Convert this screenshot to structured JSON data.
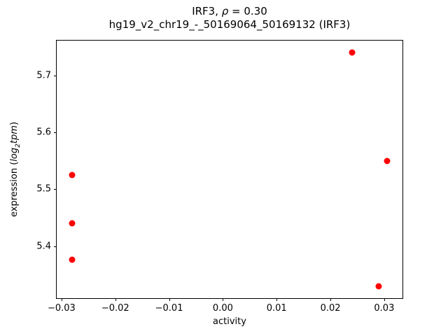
{
  "title": {
    "line1_prefix": "IRF3, ",
    "line1_rho": "ρ",
    "line1_suffix": " = 0.30",
    "line2": "hg19_v2_chr19_-_50169064_50169132 (IRF3)"
  },
  "axes": {
    "xlabel": "activity",
    "ylabel_prefix": "expression (",
    "ylabel_log": "log",
    "ylabel_log_sub": "2",
    "ylabel_tpm": "tpm",
    "ylabel_suffix": ")"
  },
  "chart_data": {
    "type": "scatter",
    "title": "IRF3, ρ = 0.30",
    "subtitle": "hg19_v2_chr19_-_50169064_50169132 (IRF3)",
    "xlabel": "activity",
    "ylabel": "expression (log2 tpm)",
    "marker_color": "#ff0000",
    "marker_size_px": 9,
    "grid": false,
    "xlim": [
      -0.0309,
      0.0334
    ],
    "ylim": [
      5.309,
      5.761
    ],
    "x_ticks": [
      -0.03,
      -0.02,
      -0.01,
      0.0,
      0.01,
      0.02,
      0.03
    ],
    "x_tick_labels": [
      "−0.03",
      "−0.02",
      "−0.01",
      "0.00",
      "0.01",
      "0.02",
      "0.03"
    ],
    "y_ticks": [
      5.4,
      5.5,
      5.6,
      5.7
    ],
    "y_tick_labels": [
      "5.4",
      "5.5",
      "5.6",
      "5.7"
    ],
    "points": [
      {
        "x": -0.028,
        "y": 5.525
      },
      {
        "x": -0.028,
        "y": 5.44
      },
      {
        "x": -0.028,
        "y": 5.377
      },
      {
        "x": 0.024,
        "y": 5.74
      },
      {
        "x": 0.0305,
        "y": 5.55
      },
      {
        "x": 0.029,
        "y": 5.33
      }
    ]
  }
}
